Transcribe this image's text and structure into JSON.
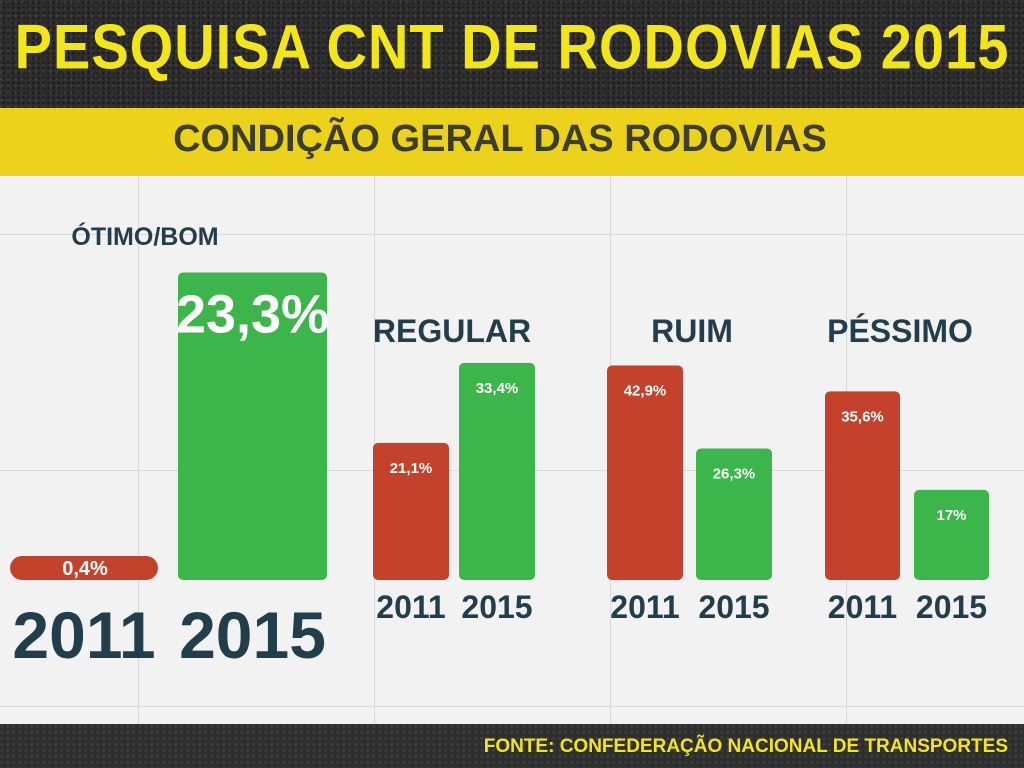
{
  "title": "PESQUISA CNT DE RODOVIAS 2015",
  "subtitle": "CONDIÇÃO  GERAL DAS RODOVIAS",
  "source": "FONTE: CONFEDERAÇÃO NACIONAL DE TRANSPORTES",
  "colors": {
    "year_2011": "#c4422b",
    "year_2015": "#3cb54a",
    "title": "#f2e51a",
    "band": "#ecd21a",
    "label": "#223e4c"
  },
  "chart_data": {
    "type": "bar",
    "categories": [
      "ÓTIMO/BOM",
      "REGULAR",
      "RUIM",
      "PÉSSIMO"
    ],
    "series": [
      {
        "name": "2011",
        "values": [
          0.4,
          21.1,
          42.9,
          35.6
        ],
        "labels": [
          "0,4%",
          "21,1%",
          "42,9%",
          "35,6%"
        ]
      },
      {
        "name": "2015",
        "values": [
          23.3,
          33.4,
          26.3,
          17
        ],
        "labels": [
          "23,3%",
          "33,4%",
          "26,3%",
          "17%"
        ]
      }
    ],
    "unit": "%"
  }
}
